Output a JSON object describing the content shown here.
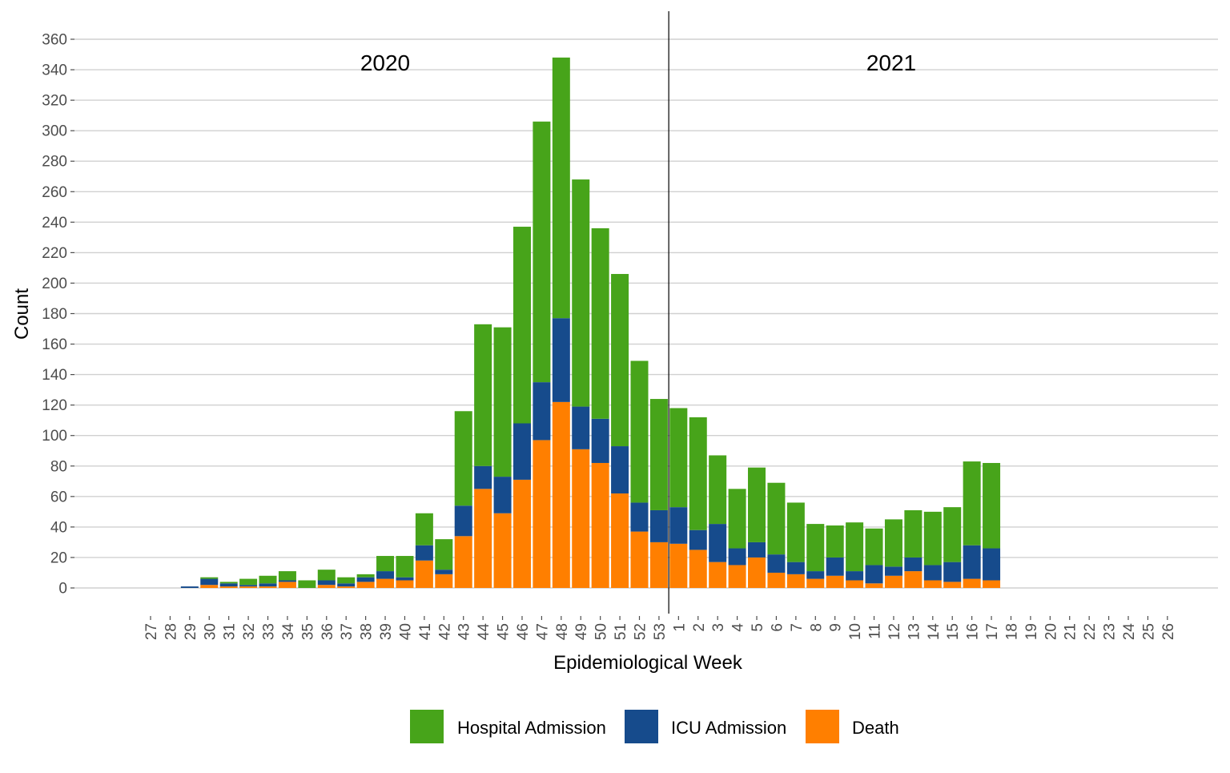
{
  "chart_data": {
    "type": "bar",
    "stacked": true,
    "xlabel": "Epidemiological Week",
    "ylabel": "Count",
    "ylim": [
      0,
      360
    ],
    "yticks": [
      0,
      20,
      40,
      60,
      80,
      100,
      120,
      140,
      160,
      180,
      200,
      220,
      240,
      260,
      280,
      300,
      320,
      340,
      360
    ],
    "grid": true,
    "legend_position": "bottom",
    "year_annotations": [
      "2020",
      "2021"
    ],
    "year_divider_after": "53",
    "categories": [
      "27",
      "28",
      "29",
      "30",
      "31",
      "32",
      "33",
      "34",
      "35",
      "36",
      "37",
      "38",
      "39",
      "40",
      "41",
      "42",
      "43",
      "44",
      "45",
      "46",
      "47",
      "48",
      "49",
      "50",
      "51",
      "52",
      "53",
      "1",
      "2",
      "3",
      "4",
      "5",
      "6",
      "7",
      "8",
      "9",
      "10",
      "11",
      "12",
      "13",
      "14",
      "15",
      "16",
      "17",
      "18",
      "19",
      "20",
      "21",
      "22",
      "23",
      "24",
      "25",
      "26"
    ],
    "series": [
      {
        "name": "Death",
        "color": "#FF7F00",
        "values": [
          0,
          0,
          0,
          2,
          1,
          1,
          1,
          4,
          0,
          2,
          1,
          4,
          6,
          5,
          18,
          9,
          34,
          65,
          49,
          71,
          97,
          122,
          91,
          82,
          62,
          37,
          30,
          29,
          25,
          17,
          15,
          20,
          10,
          9,
          6,
          8,
          5,
          3,
          8,
          11,
          5,
          4,
          6,
          5,
          0,
          0,
          0,
          0,
          0,
          0,
          0,
          0,
          0
        ]
      },
      {
        "name": "ICU Admission",
        "color": "#164B8C",
        "values": [
          0,
          0,
          1,
          4,
          2,
          1,
          2,
          1,
          0,
          3,
          2,
          3,
          5,
          2,
          10,
          3,
          20,
          15,
          24,
          37,
          38,
          55,
          28,
          29,
          31,
          19,
          21,
          24,
          13,
          25,
          11,
          10,
          12,
          8,
          5,
          12,
          6,
          12,
          6,
          9,
          10,
          13,
          22,
          21,
          0,
          0,
          0,
          0,
          0,
          0,
          0,
          0,
          0
        ]
      },
      {
        "name": "Hospital Admission",
        "color": "#47A41A",
        "values": [
          0,
          0,
          0,
          1,
          1,
          4,
          5,
          6,
          5,
          7,
          4,
          2,
          10,
          14,
          21,
          20,
          62,
          93,
          98,
          129,
          171,
          171,
          149,
          125,
          113,
          93,
          73,
          65,
          74,
          45,
          39,
          49,
          47,
          39,
          31,
          21,
          32,
          24,
          31,
          31,
          35,
          36,
          55,
          56,
          0,
          0,
          0,
          0,
          0,
          0,
          0,
          0,
          0
        ]
      }
    ]
  }
}
